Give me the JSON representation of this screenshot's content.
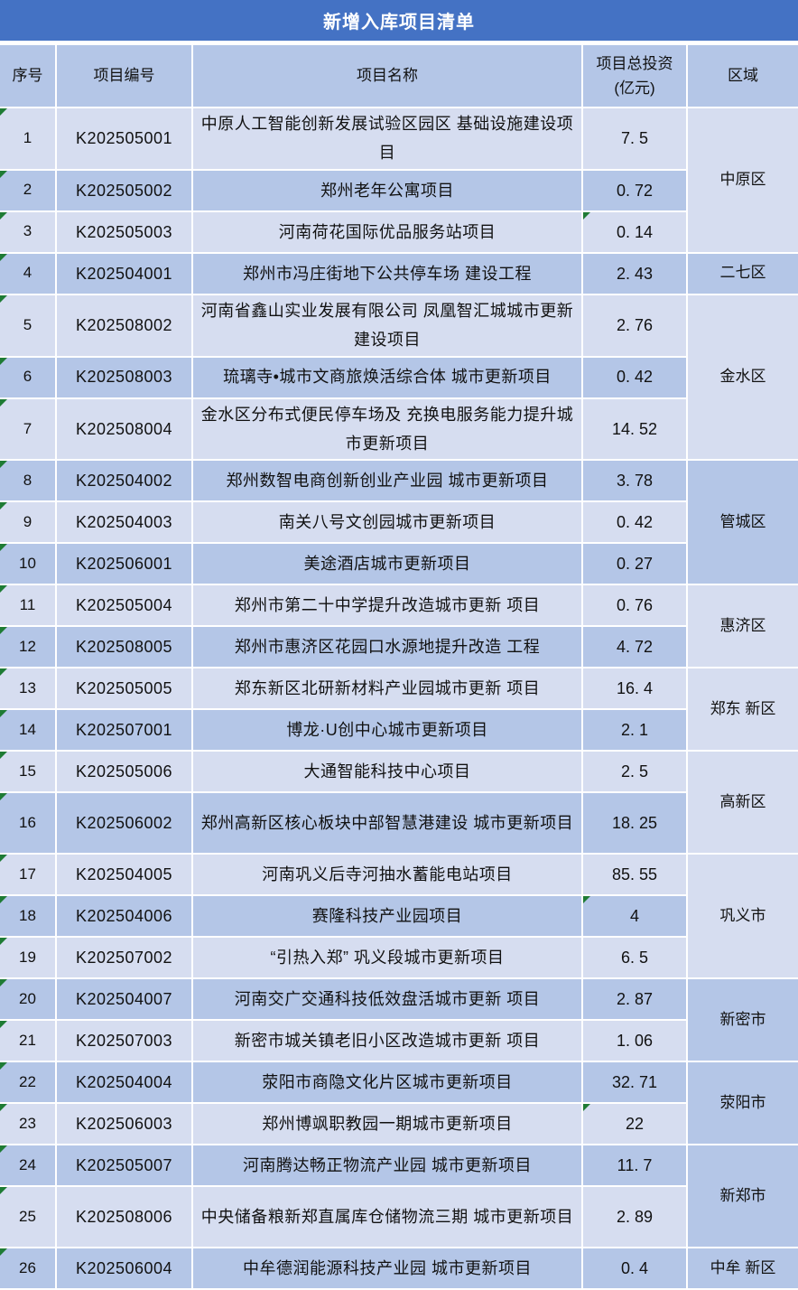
{
  "title": "新增入库项目清单",
  "table": {
    "columns": [
      "序号",
      "项目编号",
      "项目名称",
      "项目总投资(亿元)",
      "区域"
    ],
    "colors": {
      "title_bar": "#4472C4",
      "band_dark": "#B4C6E7",
      "band_light": "#D6DDF0",
      "gridline": "#FFFFFF",
      "error_indicator_green": "#1E7B34"
    },
    "error_indicators": {
      "serial_rows": "all",
      "investment_rows": [
        3,
        18,
        23
      ]
    },
    "rows": [
      {
        "no": "1",
        "code": "K202505001",
        "name": "中原人工智能创新发展试验区园区 基础设施建设项目",
        "invest": "7. 5",
        "tall": true
      },
      {
        "no": "2",
        "code": "K202505002",
        "name": "郑州老年公寓项目",
        "invest": "0. 72",
        "tall": false
      },
      {
        "no": "3",
        "code": "K202505003",
        "name": "河南荷花国际优品服务站项目",
        "invest": "0. 14",
        "tall": false
      },
      {
        "no": "4",
        "code": "K202504001",
        "name": "郑州市冯庄街地下公共停车场 建设工程",
        "invest": "2. 43",
        "tall": false
      },
      {
        "no": "5",
        "code": "K202508002",
        "name": "河南省鑫山实业发展有限公司 凤凰智汇城城市更新建设项目",
        "invest": "2. 76",
        "tall": true
      },
      {
        "no": "6",
        "code": "K202508003",
        "name": "琉璃寺•城市文商旅焕活综合体 城市更新项目",
        "invest": "0. 42",
        "tall": false
      },
      {
        "no": "7",
        "code": "K202508004",
        "name": "金水区分布式便民停车场及 充换电服务能力提升城市更新项目",
        "invest": "14. 52",
        "tall": true
      },
      {
        "no": "8",
        "code": "K202504002",
        "name": "郑州数智电商创新创业产业园 城市更新项目",
        "invest": "3. 78",
        "tall": false
      },
      {
        "no": "9",
        "code": "K202504003",
        "name": "南关八号文创园城市更新项目",
        "invest": "0. 42",
        "tall": false
      },
      {
        "no": "10",
        "code": "K202506001",
        "name": "美途酒店城市更新项目",
        "invest": "0. 27",
        "tall": false
      },
      {
        "no": "11",
        "code": "K202505004",
        "name": "郑州市第二十中学提升改造城市更新 项目",
        "invest": "0. 76",
        "tall": false
      },
      {
        "no": "12",
        "code": "K202508005",
        "name": "郑州市惠济区花园口水源地提升改造 工程",
        "invest": "4. 72",
        "tall": false
      },
      {
        "no": "13",
        "code": "K202505005",
        "name": "郑东新区北研新材料产业园城市更新 项目",
        "invest": "16. 4",
        "tall": false
      },
      {
        "no": "14",
        "code": "K202507001",
        "name": "博龙·U创中心城市更新项目",
        "invest": "2. 1",
        "tall": false
      },
      {
        "no": "15",
        "code": "K202505006",
        "name": "大通智能科技中心项目",
        "invest": "2. 5",
        "tall": false
      },
      {
        "no": "16",
        "code": "K202506002",
        "name": "郑州高新区核心板块中部智慧港建设 城市更新项目",
        "invest": "18. 25",
        "tall": true
      },
      {
        "no": "17",
        "code": "K202504005",
        "name": "河南巩义后寺河抽水蓄能电站项目",
        "invest": "85. 55",
        "tall": false
      },
      {
        "no": "18",
        "code": "K202504006",
        "name": "赛隆科技产业园项目",
        "invest": "4",
        "tall": false
      },
      {
        "no": "19",
        "code": "K202507002",
        "name": "“引热入郑” 巩义段城市更新项目",
        "invest": "6. 5",
        "tall": false
      },
      {
        "no": "20",
        "code": "K202504007",
        "name": "河南交广交通科技低效盘活城市更新 项目",
        "invest": "2. 87",
        "tall": false
      },
      {
        "no": "21",
        "code": "K202507003",
        "name": "新密市城关镇老旧小区改造城市更新 项目",
        "invest": "1. 06",
        "tall": false
      },
      {
        "no": "22",
        "code": "K202504004",
        "name": "荥阳市商隐文化片区城市更新项目",
        "invest": "32. 71",
        "tall": false
      },
      {
        "no": "23",
        "code": "K202506003",
        "name": "郑州博飒职教园一期城市更新项目",
        "invest": "22",
        "tall": false
      },
      {
        "no": "24",
        "code": "K202505007",
        "name": "河南腾达畅正物流产业园 城市更新项目",
        "invest": "11. 7",
        "tall": false
      },
      {
        "no": "25",
        "code": "K202508006",
        "name": "中央储备粮新郑直属库仓储物流三期 城市更新项目",
        "invest": "2. 89",
        "tall": true
      },
      {
        "no": "26",
        "code": "K202506004",
        "name": "中牟德润能源科技产业园 城市更新项目",
        "invest": "0. 4",
        "tall": false
      }
    ],
    "regions": [
      {
        "label": "中原区",
        "start": 1,
        "span": 3,
        "shade": "light"
      },
      {
        "label": "二七区",
        "start": 4,
        "span": 1,
        "shade": "dark"
      },
      {
        "label": "金水区",
        "start": 5,
        "span": 3,
        "shade": "light"
      },
      {
        "label": "管城区",
        "start": 8,
        "span": 3,
        "shade": "dark"
      },
      {
        "label": "惠济区",
        "start": 11,
        "span": 2,
        "shade": "light"
      },
      {
        "label": "郑东 新区",
        "start": 13,
        "span": 2,
        "shade": "light"
      },
      {
        "label": "高新区",
        "start": 15,
        "span": 2,
        "shade": "light"
      },
      {
        "label": "巩义市",
        "start": 17,
        "span": 3,
        "shade": "light"
      },
      {
        "label": "新密市",
        "start": 20,
        "span": 2,
        "shade": "dark"
      },
      {
        "label": "荥阳市",
        "start": 22,
        "span": 2,
        "shade": "dark"
      },
      {
        "label": "新郑市",
        "start": 24,
        "span": 2,
        "shade": "dark"
      },
      {
        "label": "中牟 新区",
        "start": 26,
        "span": 1,
        "shade": "dark"
      }
    ]
  }
}
